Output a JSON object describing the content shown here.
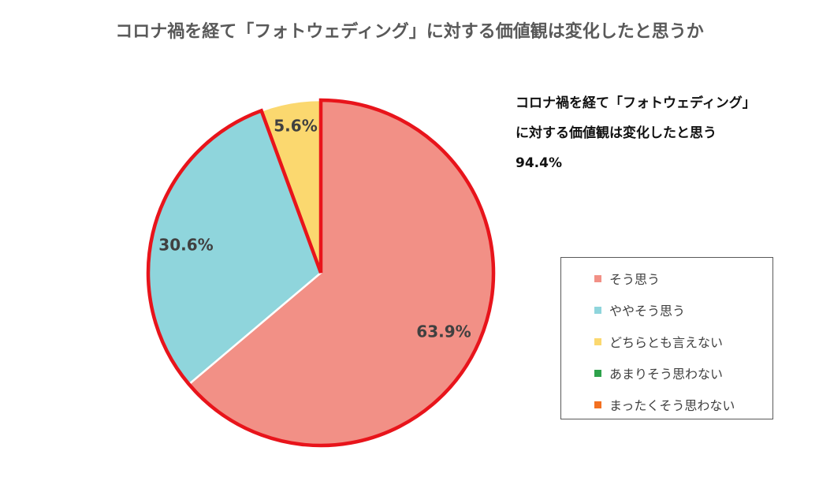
{
  "title": "コロナ禍を経て「フォトウェディング」に対する価値観は変化したと思うか",
  "annotation": {
    "line1": "コロナ禍を経て「フォトウェディング」",
    "line2": "に対する価値観は変化したと思う",
    "value": "94.4%"
  },
  "chart_data": {
    "type": "pie",
    "title": "コロナ禍を経て「フォトウェディング」に対する価値観は変化したと思うか",
    "start": "12 o'clock",
    "direction": "clockwise",
    "slices": [
      {
        "name": "そう思う",
        "value": 63.9,
        "label": "63.9%",
        "color": "#F29086"
      },
      {
        "name": "ややそう思う",
        "value": 30.6,
        "label": "30.6%",
        "color": "#8FD5DC"
      },
      {
        "name": "どちらとも言えない",
        "value": 5.6,
        "label": "5.6%",
        "color": "#FBD86F"
      },
      {
        "name": "あまりそう思わない",
        "value": 0,
        "label": "",
        "color": "#2EA24B"
      },
      {
        "name": "まったくそう思わない",
        "value": 0,
        "label": "",
        "color": "#F37021"
      }
    ],
    "highlight": {
      "slices": [
        "そう思う",
        "ややそう思う"
      ],
      "outline_color": "#E8141B",
      "total": "94.4%"
    },
    "legend_position": "right"
  }
}
